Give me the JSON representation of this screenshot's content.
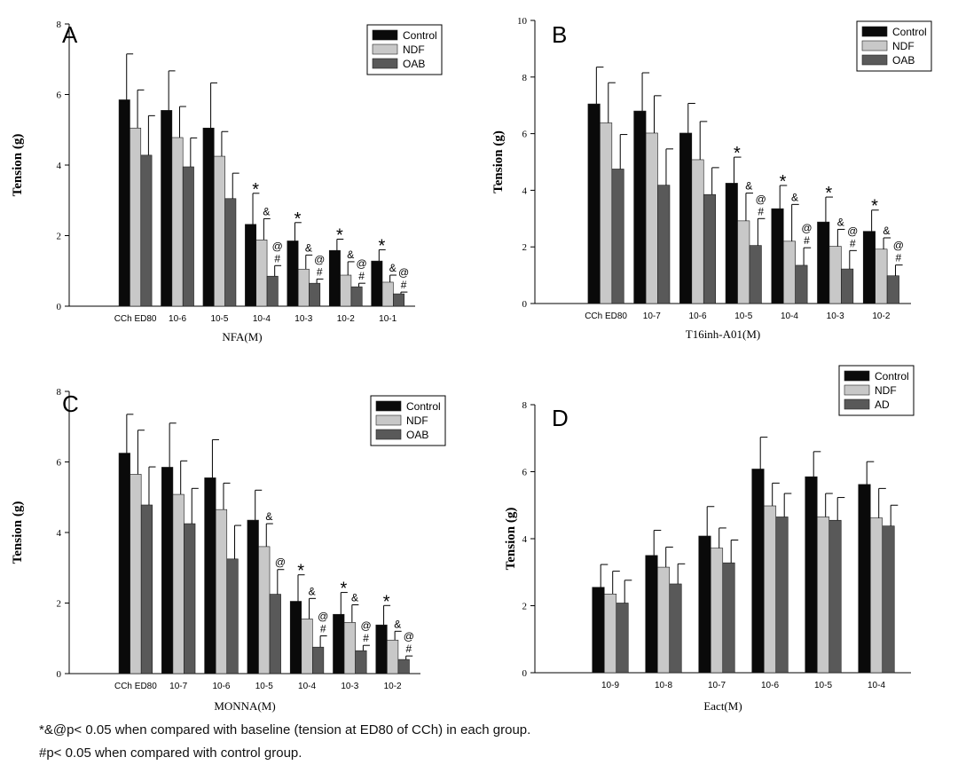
{
  "footnotes": [
    "*&@p< 0.05 when compared with baseline (tension at ED80 of CCh) in each group.",
    "#p< 0.05 when compared with control group."
  ],
  "colors": {
    "series": [
      "#0a0a0a",
      "#c8c8c8",
      "#595959"
    ]
  },
  "chart_data": [
    {
      "type": "bar",
      "panel_label": "A",
      "xlabel": "NFA(M)",
      "ylabel": "Tension (g)",
      "ylim": [
        0,
        8
      ],
      "yticks": [
        0,
        2,
        4,
        6,
        8
      ],
      "grid": false,
      "legend_position": "top-right",
      "categories": [
        "CCh ED80",
        "10-6",
        "10-5",
        "10-4",
        "10-3",
        "10-2",
        "10-1"
      ],
      "series": [
        {
          "name": "Control",
          "values": [
            5.85,
            5.55,
            5.05,
            2.32,
            1.85,
            1.58,
            1.28
          ],
          "errors": [
            1.3,
            1.12,
            1.28,
            0.88,
            0.52,
            0.32,
            0.32
          ]
        },
        {
          "name": "NDF",
          "values": [
            5.05,
            4.78,
            4.25,
            1.88,
            1.05,
            0.88,
            0.68
          ],
          "errors": [
            1.08,
            0.88,
            0.7,
            0.6,
            0.4,
            0.38,
            0.2
          ]
        },
        {
          "name": "OAB",
          "values": [
            4.28,
            3.95,
            3.05,
            0.85,
            0.65,
            0.55,
            0.35
          ],
          "errors": [
            1.12,
            0.82,
            0.72,
            0.3,
            0.12,
            0.1,
            0.05
          ]
        }
      ],
      "annotations": [
        {
          "category": 3,
          "series": 0,
          "text": "*"
        },
        {
          "category": 3,
          "series": 1,
          "text": "&"
        },
        {
          "category": 3,
          "series": 2,
          "text": "#"
        },
        {
          "category": 3,
          "series": 2,
          "text": "@"
        },
        {
          "category": 4,
          "series": 0,
          "text": "*"
        },
        {
          "category": 4,
          "series": 1,
          "text": "&"
        },
        {
          "category": 4,
          "series": 2,
          "text": "#"
        },
        {
          "category": 4,
          "series": 2,
          "text": "@"
        },
        {
          "category": 5,
          "series": 0,
          "text": "*"
        },
        {
          "category": 5,
          "series": 1,
          "text": "&"
        },
        {
          "category": 5,
          "series": 2,
          "text": "#"
        },
        {
          "category": 5,
          "series": 2,
          "text": "@"
        },
        {
          "category": 6,
          "series": 0,
          "text": "*"
        },
        {
          "category": 6,
          "series": 1,
          "text": "&"
        },
        {
          "category": 6,
          "series": 2,
          "text": "#"
        },
        {
          "category": 6,
          "series": 2,
          "text": "@"
        }
      ]
    },
    {
      "type": "bar",
      "panel_label": "B",
      "xlabel": "T16inh-A01(M)",
      "ylabel": "Tension (g)",
      "ylim": [
        0,
        10
      ],
      "yticks": [
        0,
        2,
        4,
        6,
        8,
        10
      ],
      "grid": false,
      "legend_position": "top-right",
      "categories": [
        "CCh ED80",
        "10-7",
        "10-6",
        "10-5",
        "10-4",
        "10-3",
        "10-2"
      ],
      "series": [
        {
          "name": "Control",
          "values": [
            7.05,
            6.8,
            6.02,
            4.25,
            3.35,
            2.88,
            2.55
          ],
          "errors": [
            1.3,
            1.35,
            1.05,
            0.92,
            0.82,
            0.88,
            0.75
          ]
        },
        {
          "name": "NDF",
          "values": [
            6.38,
            6.02,
            5.08,
            2.92,
            2.2,
            2.02,
            1.92
          ],
          "errors": [
            1.42,
            1.32,
            1.35,
            0.98,
            1.3,
            0.6,
            0.4
          ]
        },
        {
          "name": "OAB",
          "values": [
            4.75,
            4.18,
            3.85,
            2.05,
            1.35,
            1.22,
            0.98
          ],
          "errors": [
            1.22,
            1.28,
            0.95,
            0.95,
            0.62,
            0.65,
            0.38
          ]
        }
      ],
      "annotations": [
        {
          "category": 3,
          "series": 0,
          "text": "*"
        },
        {
          "category": 3,
          "series": 1,
          "text": "&"
        },
        {
          "category": 3,
          "series": 2,
          "text": "#"
        },
        {
          "category": 3,
          "series": 2,
          "text": "@"
        },
        {
          "category": 4,
          "series": 0,
          "text": "*"
        },
        {
          "category": 4,
          "series": 1,
          "text": "&"
        },
        {
          "category": 4,
          "series": 2,
          "text": "#"
        },
        {
          "category": 4,
          "series": 2,
          "text": "@"
        },
        {
          "category": 5,
          "series": 0,
          "text": "*"
        },
        {
          "category": 5,
          "series": 1,
          "text": "&"
        },
        {
          "category": 5,
          "series": 2,
          "text": "#"
        },
        {
          "category": 5,
          "series": 2,
          "text": "@"
        },
        {
          "category": 6,
          "series": 0,
          "text": "*"
        },
        {
          "category": 6,
          "series": 1,
          "text": "&"
        },
        {
          "category": 6,
          "series": 2,
          "text": "#"
        },
        {
          "category": 6,
          "series": 2,
          "text": "@"
        }
      ]
    },
    {
      "type": "bar",
      "panel_label": "C",
      "xlabel": "MONNA(M)",
      "ylabel": "Tension (g)",
      "ylim": [
        0,
        8
      ],
      "yticks": [
        0,
        2,
        4,
        6,
        8
      ],
      "grid": false,
      "legend_position": "top-right",
      "categories": [
        "CCh ED80",
        "10-7",
        "10-6",
        "10-5",
        "10-4",
        "10-3",
        "10-2"
      ],
      "series": [
        {
          "name": "Control",
          "values": [
            6.25,
            5.85,
            5.55,
            4.35,
            2.05,
            1.68,
            1.38
          ],
          "errors": [
            1.1,
            1.25,
            1.08,
            0.85,
            0.75,
            0.62,
            0.55
          ]
        },
        {
          "name": "NDF",
          "values": [
            5.65,
            5.08,
            4.65,
            3.6,
            1.55,
            1.45,
            0.95
          ],
          "errors": [
            1.25,
            0.95,
            0.75,
            0.65,
            0.58,
            0.5,
            0.25
          ]
        },
        {
          "name": "OAB",
          "values": [
            4.78,
            4.25,
            3.25,
            2.25,
            0.75,
            0.65,
            0.4
          ],
          "errors": [
            1.08,
            1.0,
            0.95,
            0.7,
            0.32,
            0.15,
            0.1
          ]
        }
      ],
      "annotations": [
        {
          "category": 3,
          "series": 1,
          "text": "&"
        },
        {
          "category": 3,
          "series": 2,
          "text": "@"
        },
        {
          "category": 4,
          "series": 0,
          "text": "*"
        },
        {
          "category": 4,
          "series": 1,
          "text": "&"
        },
        {
          "category": 4,
          "series": 2,
          "text": "#"
        },
        {
          "category": 4,
          "series": 2,
          "text": "@"
        },
        {
          "category": 5,
          "series": 0,
          "text": "*"
        },
        {
          "category": 5,
          "series": 1,
          "text": "&"
        },
        {
          "category": 5,
          "series": 2,
          "text": "#"
        },
        {
          "category": 5,
          "series": 2,
          "text": "@"
        },
        {
          "category": 6,
          "series": 0,
          "text": "*"
        },
        {
          "category": 6,
          "series": 1,
          "text": "&"
        },
        {
          "category": 6,
          "series": 2,
          "text": "#"
        },
        {
          "category": 6,
          "series": 2,
          "text": "@"
        }
      ]
    },
    {
      "type": "bar",
      "panel_label": "D",
      "xlabel": "Eact(M)",
      "ylabel": "Tension (g)",
      "ylim": [
        0,
        8
      ],
      "yticks": [
        0,
        2,
        4,
        6,
        8
      ],
      "grid": false,
      "legend_position": "top-right",
      "categories": [
        "10-9",
        "10-8",
        "10-7",
        "10-6",
        "10-5",
        "10-4"
      ],
      "series": [
        {
          "name": "Control",
          "values": [
            2.55,
            3.5,
            4.08,
            6.08,
            5.85,
            5.62
          ],
          "errors": [
            0.68,
            0.75,
            0.88,
            0.95,
            0.75,
            0.68
          ]
        },
        {
          "name": "NDF",
          "values": [
            2.35,
            3.15,
            3.72,
            4.98,
            4.65,
            4.62
          ],
          "errors": [
            0.68,
            0.6,
            0.6,
            0.68,
            0.7,
            0.88
          ]
        },
        {
          "name": "AD",
          "values": [
            2.08,
            2.65,
            3.28,
            4.65,
            4.55,
            4.38
          ],
          "errors": [
            0.68,
            0.6,
            0.68,
            0.7,
            0.68,
            0.62
          ]
        }
      ],
      "annotations": []
    }
  ]
}
